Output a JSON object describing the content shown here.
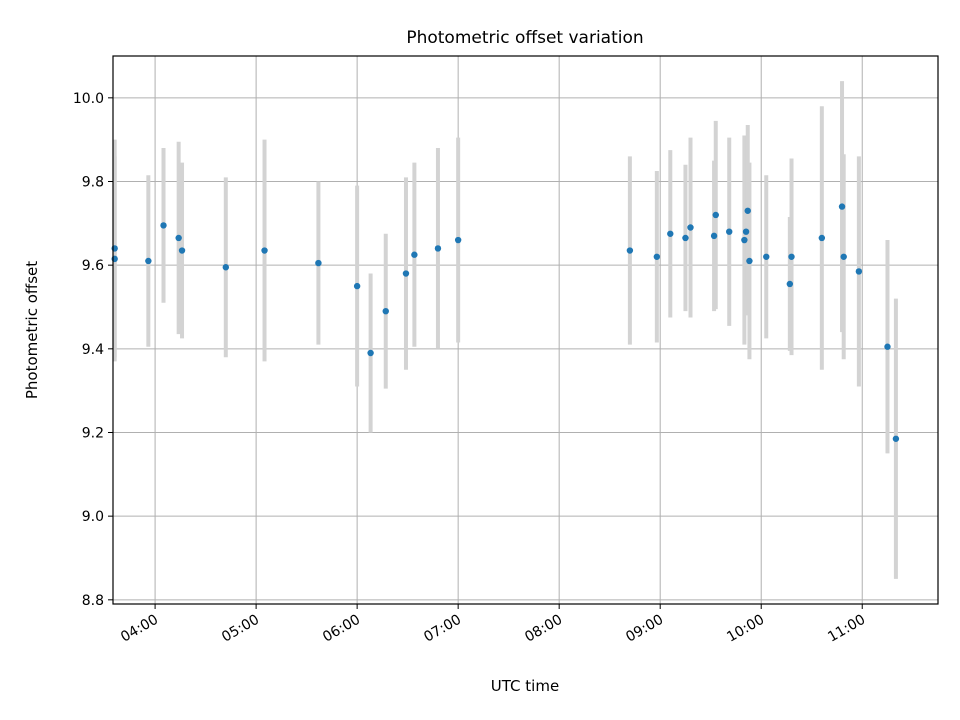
{
  "chart_data": {
    "type": "scatter",
    "title": "Photometric offset variation",
    "xlabel": "UTC time",
    "ylabel": "Photometric offset",
    "x_tick_labels": [
      "04:00",
      "05:00",
      "06:00",
      "07:00",
      "08:00",
      "09:00",
      "10:00",
      "11:00"
    ],
    "y_tick_labels": [
      "8.8",
      "9.0",
      "9.2",
      "9.4",
      "9.6",
      "9.8",
      "10.0"
    ],
    "xlim": [
      "03:35",
      "11:45"
    ],
    "ylim": [
      8.79,
      10.1
    ],
    "grid": true,
    "legend": "none",
    "marker_color": "#1f77b4",
    "errorbar_color": "#d3d3d3",
    "series": [
      {
        "points": [
          {
            "t": "03:36",
            "y": 9.64,
            "err": 0.26
          },
          {
            "t": "03:36",
            "y": 9.615,
            "err": 0.245
          },
          {
            "t": "03:56",
            "y": 9.61,
            "err": 0.205
          },
          {
            "t": "04:05",
            "y": 9.695,
            "err": 0.185
          },
          {
            "t": "04:14",
            "y": 9.665,
            "err": 0.23
          },
          {
            "t": "04:16",
            "y": 9.635,
            "err": 0.21
          },
          {
            "t": "04:42",
            "y": 9.595,
            "err": 0.215
          },
          {
            "t": "05:05",
            "y": 9.635,
            "err": 0.265
          },
          {
            "t": "05:37",
            "y": 9.605,
            "err": 0.195
          },
          {
            "t": "06:00",
            "y": 9.55,
            "err": 0.24
          },
          {
            "t": "06:08",
            "y": 9.39,
            "err": 0.19
          },
          {
            "t": "06:17",
            "y": 9.49,
            "err": 0.185
          },
          {
            "t": "06:29",
            "y": 9.58,
            "err": 0.23
          },
          {
            "t": "06:34",
            "y": 9.625,
            "err": 0.22
          },
          {
            "t": "06:48",
            "y": 9.64,
            "err": 0.24
          },
          {
            "t": "07:00",
            "y": 9.66,
            "err": 0.245
          },
          {
            "t": "08:42",
            "y": 9.635,
            "err": 0.225
          },
          {
            "t": "08:58",
            "y": 9.62,
            "err": 0.205
          },
          {
            "t": "09:06",
            "y": 9.675,
            "err": 0.2
          },
          {
            "t": "09:15",
            "y": 9.665,
            "err": 0.175
          },
          {
            "t": "09:18",
            "y": 9.69,
            "err": 0.215
          },
          {
            "t": "09:32",
            "y": 9.67,
            "err": 0.18
          },
          {
            "t": "09:33",
            "y": 9.72,
            "err": 0.225
          },
          {
            "t": "09:41",
            "y": 9.68,
            "err": 0.225
          },
          {
            "t": "09:50",
            "y": 9.66,
            "err": 0.25
          },
          {
            "t": "09:51",
            "y": 9.68,
            "err": 0.2
          },
          {
            "t": "09:52",
            "y": 9.73,
            "err": 0.205
          },
          {
            "t": "09:53",
            "y": 9.61,
            "err": 0.235
          },
          {
            "t": "10:03",
            "y": 9.62,
            "err": 0.195
          },
          {
            "t": "10:17",
            "y": 9.555,
            "err": 0.16
          },
          {
            "t": "10:18",
            "y": 9.62,
            "err": 0.235
          },
          {
            "t": "10:36",
            "y": 9.665,
            "err": 0.315
          },
          {
            "t": "10:48",
            "y": 9.74,
            "err": 0.3
          },
          {
            "t": "10:49",
            "y": 9.62,
            "err": 0.245
          },
          {
            "t": "10:58",
            "y": 9.585,
            "err": 0.275
          },
          {
            "t": "11:15",
            "y": 9.405,
            "err": 0.255
          },
          {
            "t": "11:20",
            "y": 9.185,
            "err": 0.335
          }
        ]
      }
    ]
  }
}
